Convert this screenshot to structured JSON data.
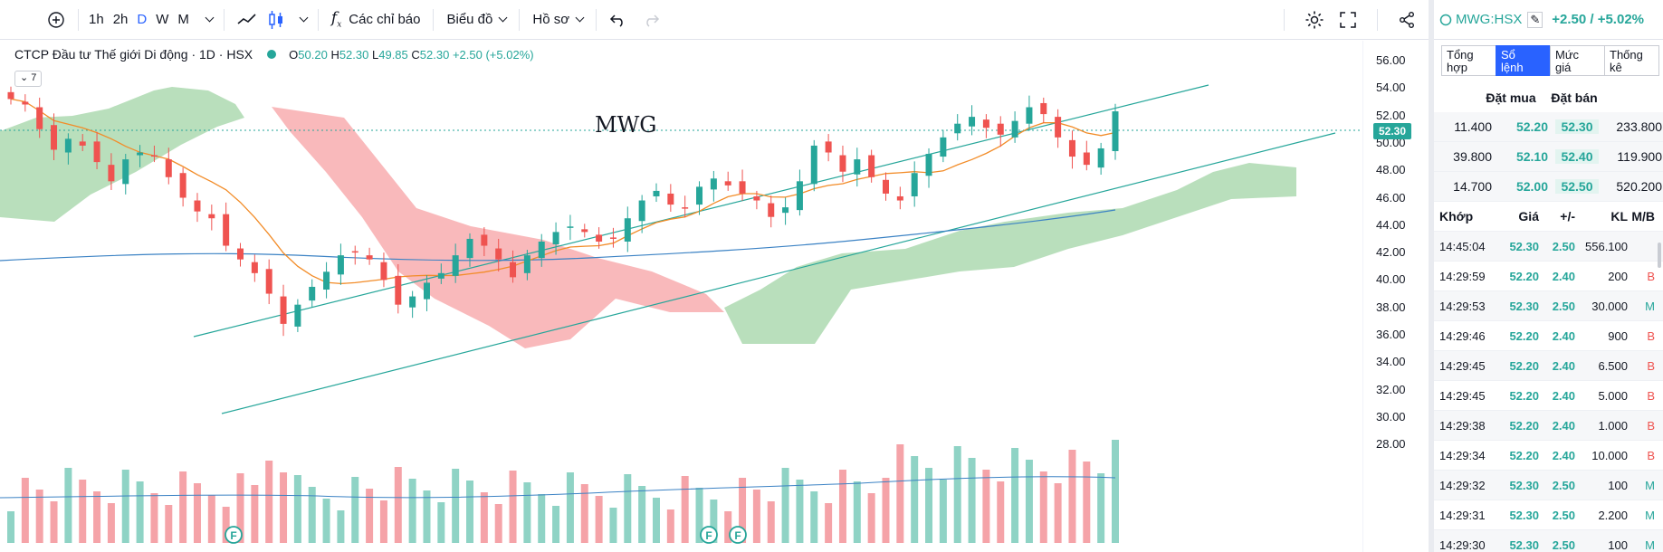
{
  "toolbar": {
    "intervals": [
      "1h",
      "2h",
      "D",
      "W",
      "M"
    ],
    "active_interval": "D",
    "indicators_label": "Các chỉ báo",
    "chart_type_label": "Biểu đồ",
    "profile_label": "Hồ sơ"
  },
  "legend": {
    "title": "CTCP Đầu tư Thế giới Di động · 1D · HSX",
    "o_label": "O",
    "o": "50.20",
    "h_label": "H",
    "h": "52.30",
    "l_label": "L",
    "l": "49.85",
    "c_label": "C",
    "c": "52.30",
    "change": "+2.50 (+5.02%)",
    "collapse_count": "7"
  },
  "chart_text": {
    "annotation": "MWG",
    "last_price": "52.30",
    "event_marker": "F"
  },
  "chart_data": {
    "type": "candlestick",
    "symbol": "MWG",
    "ylim": [
      26.5,
      57
    ],
    "y_ticks": [
      "56.00",
      "54.00",
      "52.00",
      "50.00",
      "48.00",
      "46.00",
      "44.00",
      "42.00",
      "40.00",
      "38.00",
      "36.00",
      "34.00",
      "32.00",
      "30.00",
      "28.00"
    ],
    "last_close": 52.3,
    "sample_closes": [
      53.2,
      52.8,
      51.0,
      49.5,
      50.3,
      49.8,
      48.6,
      47.2,
      48.8,
      49.3,
      49.0,
      47.5,
      46.0,
      45.0,
      44.5,
      42.5,
      41.5,
      40.5,
      39.0,
      36.8,
      38.2,
      39.5,
      40.6,
      41.8,
      42.0,
      41.5,
      40.0,
      38.2,
      38.8,
      39.8,
      40.5,
      41.8,
      43.0,
      42.5,
      41.5,
      40.2,
      41.8,
      42.8,
      43.5,
      43.9,
      43.5,
      42.8,
      43.0,
      44.5,
      45.8,
      46.5,
      45.5,
      45.2,
      46.8,
      47.4,
      46.9,
      46.3,
      45.8,
      44.6,
      45.3,
      47.2,
      49.8,
      49.3,
      47.9,
      48.8,
      47.5,
      46.3,
      45.8,
      47.8,
      49.2,
      50.4,
      51.4,
      51.9,
      51.1,
      50.6,
      51.6,
      52.6,
      52.1,
      50.4,
      49.0,
      48.4,
      49.6,
      52.3
    ],
    "volume_series": true,
    "channel_lines": true,
    "ichimoku_cloud": true,
    "moving_averages": [
      "orange short MA",
      "blue long MA"
    ]
  },
  "panel": {
    "symbol": "MWG:HSX",
    "change": "+2.50 / +5.02%",
    "tabs": [
      [
        "Tổng",
        "hợp"
      ],
      [
        "Sổ",
        "lệnh"
      ],
      [
        "Mức",
        "giá"
      ],
      [
        "Thống",
        "kê"
      ]
    ],
    "active_tab": 1,
    "orderbook_headers": [
      "Đặt mua",
      "Đặt bán"
    ],
    "orderbook": [
      [
        "11.400",
        "52.20",
        "52.30",
        "233.800"
      ],
      [
        "39.800",
        "52.10",
        "52.40",
        "119.900"
      ],
      [
        "14.700",
        "52.00",
        "52.50",
        "520.200"
      ]
    ],
    "trade_headers": [
      "Khớp",
      "Giá",
      "+/-",
      "KL",
      "M/B"
    ],
    "trades": [
      [
        "14:45:04",
        "52.30",
        "2.50",
        "556.100",
        ""
      ],
      [
        "14:29:59",
        "52.20",
        "2.40",
        "200",
        "B"
      ],
      [
        "14:29:53",
        "52.30",
        "2.50",
        "30.000",
        "M"
      ],
      [
        "14:29:46",
        "52.20",
        "2.40",
        "900",
        "B"
      ],
      [
        "14:29:45",
        "52.20",
        "2.40",
        "6.500",
        "B"
      ],
      [
        "14:29:45",
        "52.20",
        "2.40",
        "5.000",
        "B"
      ],
      [
        "14:29:38",
        "52.20",
        "2.40",
        "1.000",
        "B"
      ],
      [
        "14:29:34",
        "52.20",
        "2.40",
        "10.000",
        "B"
      ],
      [
        "14:29:32",
        "52.30",
        "2.50",
        "100",
        "M"
      ],
      [
        "14:29:31",
        "52.30",
        "2.50",
        "2.200",
        "M"
      ],
      [
        "14:29:30",
        "52.30",
        "2.50",
        "100",
        "M"
      ]
    ]
  }
}
